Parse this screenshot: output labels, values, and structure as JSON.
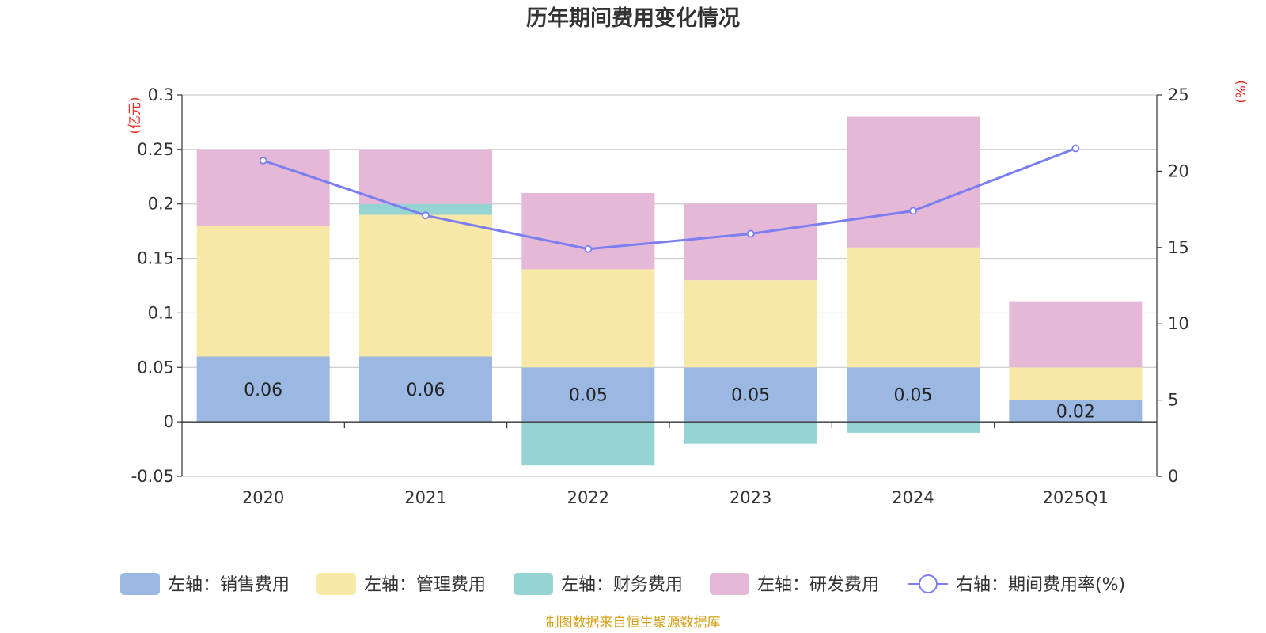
{
  "chart_data": {
    "type": "bar",
    "title": "历年期间费用变化情况",
    "categories": [
      "2020",
      "2021",
      "2022",
      "2023",
      "2024",
      "2025Q1"
    ],
    "left_axis": {
      "unit": "(亿元)",
      "ylim": [
        -0.05,
        0.3
      ],
      "ticks": [
        "-0.05",
        "0",
        "0.05",
        "0.1",
        "0.15",
        "0.2",
        "0.25",
        "0.3"
      ],
      "tick_values": [
        -0.05,
        0,
        0.05,
        0.1,
        0.15,
        0.2,
        0.25,
        0.3
      ]
    },
    "right_axis": {
      "unit": "(%)",
      "ylim": [
        0,
        25
      ],
      "ticks": [
        "0",
        "5",
        "10",
        "15",
        "20",
        "25"
      ],
      "tick_values": [
        0,
        5,
        10,
        15,
        20,
        25
      ]
    },
    "grid": true,
    "series": [
      {
        "name": "左轴：销售费用",
        "type": "bar",
        "stack": true,
        "color": "#9bb8e3",
        "values": [
          0.06,
          0.06,
          0.05,
          0.05,
          0.05,
          0.02
        ],
        "labels": [
          "0.06",
          "0.06",
          "0.05",
          "0.05",
          "0.05",
          "0.02"
        ]
      },
      {
        "name": "左轴：管理费用",
        "type": "bar",
        "stack": true,
        "color": "#f7e8a8",
        "values": [
          0.12,
          0.13,
          0.09,
          0.08,
          0.11,
          0.03
        ]
      },
      {
        "name": "左轴：财务费用",
        "type": "bar",
        "stack": true,
        "color": "#96d4d4",
        "values": [
          0.0,
          0.01,
          -0.04,
          -0.02,
          -0.01,
          0.0
        ]
      },
      {
        "name": "左轴：研发费用",
        "type": "bar",
        "stack": true,
        "color": "#e6b8d8",
        "values": [
          0.07,
          0.05,
          0.07,
          0.07,
          0.12,
          0.06
        ]
      },
      {
        "name": "右轴：期间费用率(%)",
        "type": "line",
        "axis": "right",
        "color": "#7a7ef0",
        "values": [
          20.7,
          17.1,
          14.9,
          15.9,
          17.4,
          21.5
        ]
      }
    ],
    "source": "制图数据来自恒生聚源数据库",
    "colors": {
      "unit_red": "#e8312a",
      "source_gold": "#d4a017",
      "grid": "#cccccc",
      "axis": "#333333"
    }
  }
}
